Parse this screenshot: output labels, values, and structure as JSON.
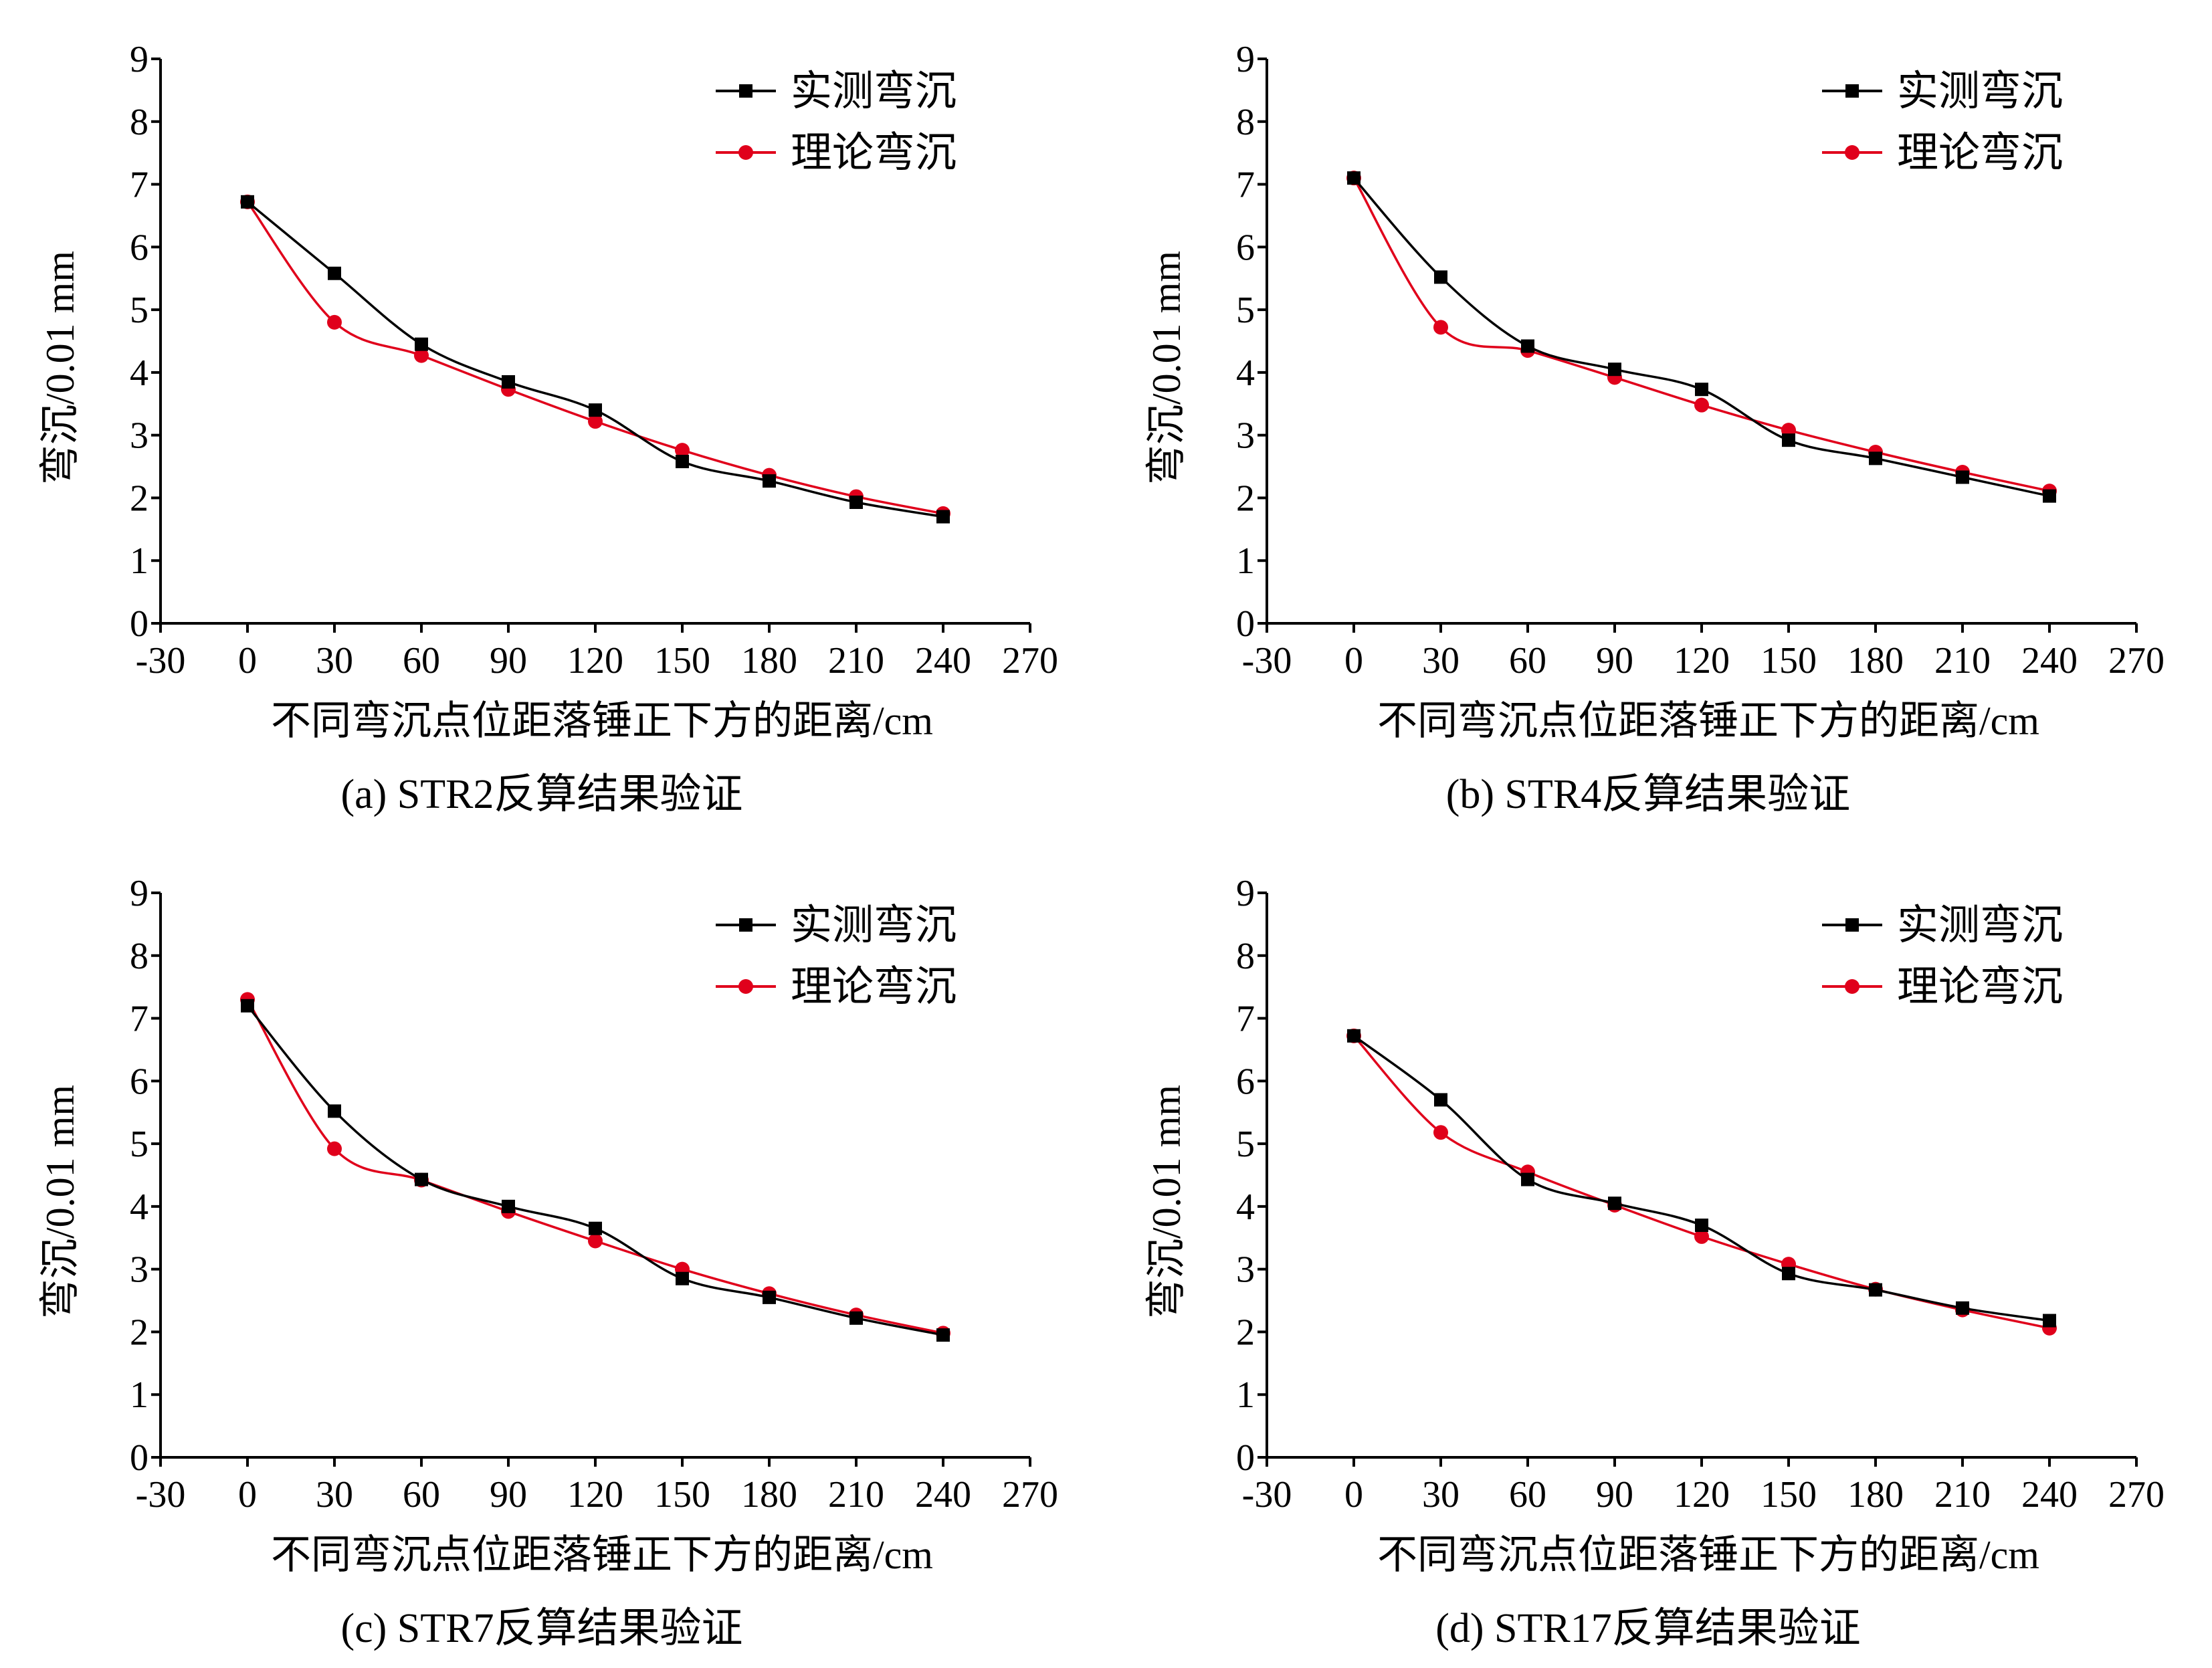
{
  "chart_data": [
    {
      "type": "line",
      "caption": "(a) STR2反算结果验证",
      "xlabel": "不同弯沉点位距落锤正下方的距离/cm",
      "ylabel": "弯沉/0.01 mm",
      "xlim": [
        -30,
        270
      ],
      "ylim": [
        0,
        9
      ],
      "xticks": [
        -30,
        0,
        30,
        60,
        90,
        120,
        150,
        180,
        210,
        240,
        270
      ],
      "yticks": [
        0,
        1,
        2,
        3,
        4,
        5,
        6,
        7,
        8,
        9
      ],
      "legend_position": "top-right",
      "x": [
        0,
        30,
        60,
        90,
        120,
        150,
        180,
        210,
        240
      ],
      "series": [
        {
          "name": "实测弯沉",
          "color": "#000000",
          "marker": "square",
          "values": [
            6.72,
            5.58,
            4.45,
            3.85,
            3.4,
            2.58,
            2.27,
            1.93,
            1.7
          ]
        },
        {
          "name": "理论弯沉",
          "color": "#e0001b",
          "marker": "circle",
          "values": [
            6.72,
            4.8,
            4.27,
            3.73,
            3.22,
            2.76,
            2.36,
            2.02,
            1.75
          ]
        }
      ]
    },
    {
      "type": "line",
      "caption": "(b) STR4反算结果验证",
      "xlabel": "不同弯沉点位距落锤正下方的距离/cm",
      "ylabel": "弯沉/0.01 mm",
      "xlim": [
        -30,
        270
      ],
      "ylim": [
        0,
        9
      ],
      "xticks": [
        -30,
        0,
        30,
        60,
        90,
        120,
        150,
        180,
        210,
        240,
        270
      ],
      "yticks": [
        0,
        1,
        2,
        3,
        4,
        5,
        6,
        7,
        8,
        9
      ],
      "legend_position": "top-right",
      "x": [
        0,
        30,
        60,
        90,
        120,
        150,
        180,
        210,
        240
      ],
      "series": [
        {
          "name": "实测弯沉",
          "color": "#000000",
          "marker": "square",
          "values": [
            7.1,
            5.52,
            4.42,
            4.05,
            3.73,
            2.92,
            2.63,
            2.33,
            2.03
          ]
        },
        {
          "name": "理论弯沉",
          "color": "#e0001b",
          "marker": "circle",
          "values": [
            7.1,
            4.72,
            4.35,
            3.92,
            3.48,
            3.08,
            2.73,
            2.41,
            2.11
          ]
        }
      ]
    },
    {
      "type": "line",
      "caption": "(c) STR7反算结果验证",
      "xlabel": "不同弯沉点位距落锤正下方的距离/cm",
      "ylabel": "弯沉/0.01 mm",
      "xlim": [
        -30,
        270
      ],
      "ylim": [
        0,
        9
      ],
      "xticks": [
        -30,
        0,
        30,
        60,
        90,
        120,
        150,
        180,
        210,
        240,
        270
      ],
      "yticks": [
        0,
        1,
        2,
        3,
        4,
        5,
        6,
        7,
        8,
        9
      ],
      "legend_position": "top-right",
      "x": [
        0,
        30,
        60,
        90,
        120,
        150,
        180,
        210,
        240
      ],
      "series": [
        {
          "name": "实测弯沉",
          "color": "#000000",
          "marker": "square",
          "values": [
            7.2,
            5.52,
            4.43,
            4.0,
            3.65,
            2.85,
            2.55,
            2.22,
            1.95
          ]
        },
        {
          "name": "理论弯沉",
          "color": "#e0001b",
          "marker": "circle",
          "values": [
            7.3,
            4.92,
            4.42,
            3.92,
            3.45,
            3.0,
            2.61,
            2.27,
            1.98
          ]
        }
      ]
    },
    {
      "type": "line",
      "caption": "(d) STR17反算结果验证",
      "xlabel": "不同弯沉点位距落锤正下方的距离/cm",
      "ylabel": "弯沉/0.01 mm",
      "xlim": [
        -30,
        270
      ],
      "ylim": [
        0,
        9
      ],
      "xticks": [
        -30,
        0,
        30,
        60,
        90,
        120,
        150,
        180,
        210,
        240,
        270
      ],
      "yticks": [
        0,
        1,
        2,
        3,
        4,
        5,
        6,
        7,
        8,
        9
      ],
      "legend_position": "top-right",
      "x": [
        0,
        30,
        60,
        90,
        120,
        150,
        180,
        210,
        240
      ],
      "series": [
        {
          "name": "实测弯沉",
          "color": "#000000",
          "marker": "square",
          "values": [
            6.72,
            5.7,
            4.43,
            4.05,
            3.7,
            2.93,
            2.67,
            2.38,
            2.18
          ]
        },
        {
          "name": "理论弯沉",
          "color": "#e0001b",
          "marker": "circle",
          "values": [
            6.72,
            5.18,
            4.55,
            4.02,
            3.52,
            3.08,
            2.68,
            2.35,
            2.06
          ]
        }
      ]
    }
  ]
}
